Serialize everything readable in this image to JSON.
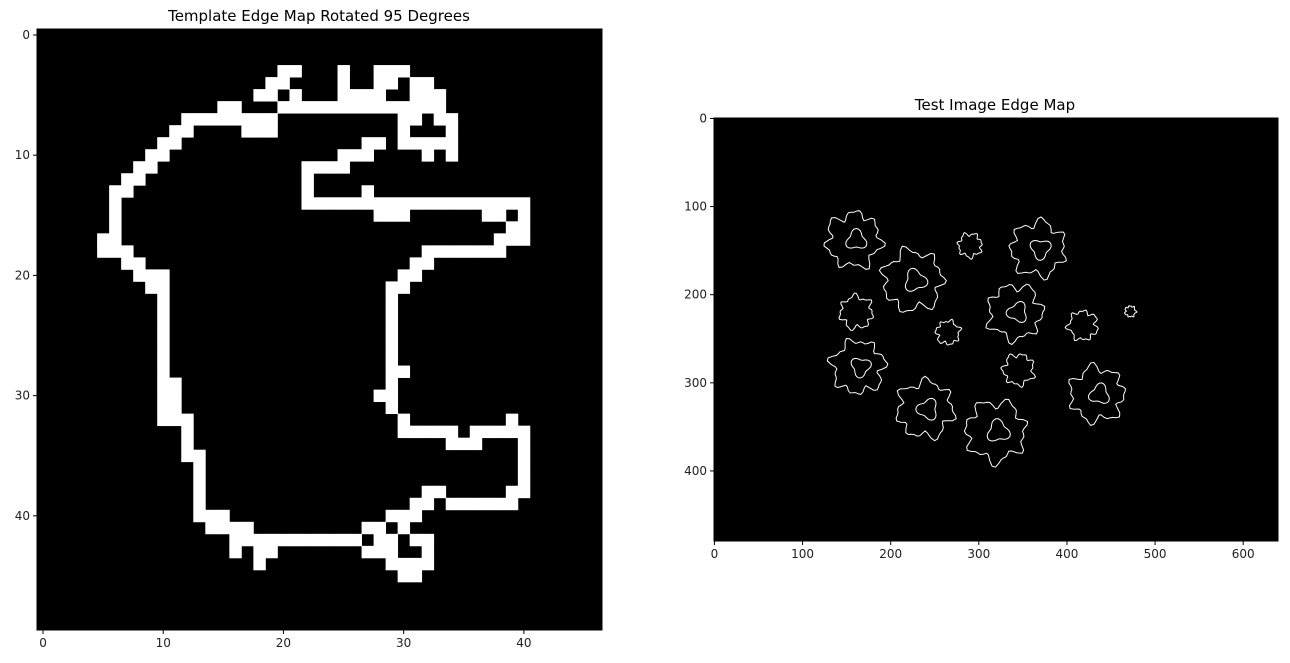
{
  "chart_data": [
    {
      "type": "heatmap",
      "title": "Template Edge Map Rotated 95 Degrees",
      "xlim": [
        -0.5,
        46.5
      ],
      "ylim": [
        49.5,
        -0.5
      ],
      "x_ticks": [
        0,
        10,
        20,
        30,
        40
      ],
      "y_ticks": [
        0,
        10,
        20,
        30,
        40
      ],
      "colormap": "gray",
      "background_color": "#000000",
      "edge_color": "#ffffff",
      "edge_pixels": [
        [
          20,
          3
        ],
        [
          21,
          3
        ],
        [
          25,
          3
        ],
        [
          28,
          3
        ],
        [
          29,
          3
        ],
        [
          30,
          3
        ],
        [
          19,
          4
        ],
        [
          20,
          4
        ],
        [
          25,
          4
        ],
        [
          28,
          4
        ],
        [
          29,
          4
        ],
        [
          31,
          4
        ],
        [
          32,
          4
        ],
        [
          18,
          5
        ],
        [
          19,
          5
        ],
        [
          21,
          5
        ],
        [
          25,
          5
        ],
        [
          26,
          5
        ],
        [
          27,
          5
        ],
        [
          28,
          5
        ],
        [
          31,
          5
        ],
        [
          32,
          5
        ],
        [
          33,
          5
        ],
        [
          15,
          6
        ],
        [
          16,
          6
        ],
        [
          20,
          6
        ],
        [
          21,
          6
        ],
        [
          22,
          6
        ],
        [
          23,
          6
        ],
        [
          24,
          6
        ],
        [
          25,
          6
        ],
        [
          26,
          6
        ],
        [
          27,
          6
        ],
        [
          28,
          6
        ],
        [
          29,
          6
        ],
        [
          30,
          6
        ],
        [
          31,
          6
        ],
        [
          32,
          6
        ],
        [
          33,
          6
        ],
        [
          12,
          7
        ],
        [
          13,
          7
        ],
        [
          14,
          7
        ],
        [
          15,
          7
        ],
        [
          16,
          7
        ],
        [
          17,
          7
        ],
        [
          18,
          7
        ],
        [
          19,
          7
        ],
        [
          30,
          7
        ],
        [
          31,
          7
        ],
        [
          33,
          7
        ],
        [
          34,
          7
        ],
        [
          11,
          8
        ],
        [
          12,
          8
        ],
        [
          17,
          8
        ],
        [
          18,
          8
        ],
        [
          19,
          8
        ],
        [
          30,
          8
        ],
        [
          34,
          8
        ],
        [
          10,
          9
        ],
        [
          11,
          9
        ],
        [
          27,
          9
        ],
        [
          28,
          9
        ],
        [
          30,
          9
        ],
        [
          31,
          9
        ],
        [
          32,
          9
        ],
        [
          33,
          9
        ],
        [
          34,
          9
        ],
        [
          9,
          10
        ],
        [
          10,
          10
        ],
        [
          25,
          10
        ],
        [
          26,
          10
        ],
        [
          27,
          10
        ],
        [
          32,
          10
        ],
        [
          34,
          10
        ],
        [
          8,
          11
        ],
        [
          9,
          11
        ],
        [
          22,
          11
        ],
        [
          23,
          11
        ],
        [
          24,
          11
        ],
        [
          25,
          11
        ],
        [
          7,
          12
        ],
        [
          8,
          12
        ],
        [
          22,
          12
        ],
        [
          6,
          13
        ],
        [
          7,
          13
        ],
        [
          22,
          13
        ],
        [
          27,
          13
        ],
        [
          6,
          14
        ],
        [
          22,
          14
        ],
        [
          23,
          14
        ],
        [
          24,
          14
        ],
        [
          25,
          14
        ],
        [
          26,
          14
        ],
        [
          27,
          14
        ],
        [
          28,
          14
        ],
        [
          29,
          14
        ],
        [
          30,
          14
        ],
        [
          31,
          14
        ],
        [
          32,
          14
        ],
        [
          33,
          14
        ],
        [
          34,
          14
        ],
        [
          35,
          14
        ],
        [
          36,
          14
        ],
        [
          37,
          14
        ],
        [
          38,
          14
        ],
        [
          39,
          14
        ],
        [
          40,
          14
        ],
        [
          6,
          15
        ],
        [
          28,
          15
        ],
        [
          29,
          15
        ],
        [
          30,
          15
        ],
        [
          37,
          15
        ],
        [
          38,
          15
        ],
        [
          40,
          15
        ],
        [
          6,
          16
        ],
        [
          39,
          16
        ],
        [
          40,
          16
        ],
        [
          5,
          17
        ],
        [
          6,
          17
        ],
        [
          38,
          17
        ],
        [
          39,
          17
        ],
        [
          40,
          17
        ],
        [
          5,
          18
        ],
        [
          6,
          18
        ],
        [
          7,
          18
        ],
        [
          32,
          18
        ],
        [
          33,
          18
        ],
        [
          34,
          18
        ],
        [
          35,
          18
        ],
        [
          36,
          18
        ],
        [
          37,
          18
        ],
        [
          38,
          18
        ],
        [
          7,
          19
        ],
        [
          8,
          19
        ],
        [
          31,
          19
        ],
        [
          32,
          19
        ],
        [
          8,
          20
        ],
        [
          9,
          20
        ],
        [
          10,
          20
        ],
        [
          30,
          20
        ],
        [
          31,
          20
        ],
        [
          9,
          21
        ],
        [
          10,
          21
        ],
        [
          29,
          21
        ],
        [
          30,
          21
        ],
        [
          10,
          22
        ],
        [
          29,
          22
        ],
        [
          10,
          23
        ],
        [
          29,
          23
        ],
        [
          10,
          24
        ],
        [
          29,
          24
        ],
        [
          10,
          25
        ],
        [
          29,
          25
        ],
        [
          10,
          26
        ],
        [
          29,
          26
        ],
        [
          10,
          27
        ],
        [
          29,
          27
        ],
        [
          10,
          28
        ],
        [
          29,
          28
        ],
        [
          30,
          28
        ],
        [
          10,
          29
        ],
        [
          11,
          29
        ],
        [
          29,
          29
        ],
        [
          10,
          30
        ],
        [
          11,
          30
        ],
        [
          28,
          30
        ],
        [
          29,
          30
        ],
        [
          10,
          31
        ],
        [
          11,
          31
        ],
        [
          29,
          31
        ],
        [
          10,
          32
        ],
        [
          11,
          32
        ],
        [
          12,
          32
        ],
        [
          30,
          32
        ],
        [
          39,
          32
        ],
        [
          12,
          33
        ],
        [
          30,
          33
        ],
        [
          31,
          33
        ],
        [
          32,
          33
        ],
        [
          33,
          33
        ],
        [
          34,
          33
        ],
        [
          36,
          33
        ],
        [
          37,
          33
        ],
        [
          38,
          33
        ],
        [
          39,
          33
        ],
        [
          40,
          33
        ],
        [
          12,
          34
        ],
        [
          34,
          34
        ],
        [
          35,
          34
        ],
        [
          36,
          34
        ],
        [
          40,
          34
        ],
        [
          12,
          35
        ],
        [
          13,
          35
        ],
        [
          40,
          35
        ],
        [
          13,
          36
        ],
        [
          40,
          36
        ],
        [
          13,
          37
        ],
        [
          40,
          37
        ],
        [
          13,
          38
        ],
        [
          32,
          38
        ],
        [
          33,
          38
        ],
        [
          39,
          38
        ],
        [
          40,
          38
        ],
        [
          13,
          39
        ],
        [
          31,
          39
        ],
        [
          32,
          39
        ],
        [
          34,
          39
        ],
        [
          35,
          39
        ],
        [
          36,
          39
        ],
        [
          37,
          39
        ],
        [
          38,
          39
        ],
        [
          39,
          39
        ],
        [
          13,
          40
        ],
        [
          14,
          40
        ],
        [
          15,
          40
        ],
        [
          29,
          40
        ],
        [
          30,
          40
        ],
        [
          31,
          40
        ],
        [
          14,
          41
        ],
        [
          15,
          41
        ],
        [
          16,
          41
        ],
        [
          17,
          41
        ],
        [
          27,
          41
        ],
        [
          28,
          41
        ],
        [
          30,
          41
        ],
        [
          16,
          42
        ],
        [
          17,
          42
        ],
        [
          18,
          42
        ],
        [
          19,
          42
        ],
        [
          20,
          42
        ],
        [
          21,
          42
        ],
        [
          22,
          42
        ],
        [
          23,
          42
        ],
        [
          24,
          42
        ],
        [
          25,
          42
        ],
        [
          26,
          42
        ],
        [
          28,
          42
        ],
        [
          29,
          42
        ],
        [
          31,
          42
        ],
        [
          32,
          42
        ],
        [
          16,
          43
        ],
        [
          18,
          43
        ],
        [
          19,
          43
        ],
        [
          27,
          43
        ],
        [
          28,
          43
        ],
        [
          29,
          43
        ],
        [
          32,
          43
        ],
        [
          18,
          44
        ],
        [
          29,
          44
        ],
        [
          30,
          44
        ],
        [
          31,
          44
        ],
        [
          32,
          44
        ],
        [
          30,
          45
        ],
        [
          31,
          45
        ]
      ]
    },
    {
      "type": "heatmap",
      "title": "Test Image Edge Map",
      "xlim": [
        -0.5,
        639.5
      ],
      "ylim": [
        479.5,
        -0.5
      ],
      "x_ticks": [
        0,
        100,
        200,
        300,
        400,
        500,
        600
      ],
      "y_ticks": [
        0,
        100,
        200,
        300,
        400
      ],
      "colormap": "gray",
      "background_color": "#000000",
      "edge_color": "#ffffff",
      "contours": [
        {
          "cx": 158,
          "cy": 138,
          "r": 30
        },
        {
          "cx": 225,
          "cy": 184,
          "r": 33
        },
        {
          "cx": 290,
          "cy": 144,
          "r": 13
        },
        {
          "cx": 367,
          "cy": 148,
          "r": 30
        },
        {
          "cx": 161,
          "cy": 220,
          "r": 18
        },
        {
          "cx": 341,
          "cy": 220,
          "r": 30
        },
        {
          "cx": 265,
          "cy": 243,
          "r": 13
        },
        {
          "cx": 418,
          "cy": 235,
          "r": 16
        },
        {
          "cx": 472,
          "cy": 219,
          "r": 6
        },
        {
          "cx": 163,
          "cy": 282,
          "r": 29
        },
        {
          "cx": 345,
          "cy": 285,
          "r": 17
        },
        {
          "cx": 239,
          "cy": 330,
          "r": 31
        },
        {
          "cx": 434,
          "cy": 313,
          "r": 30
        },
        {
          "cx": 319,
          "cy": 355,
          "r": 33
        }
      ]
    }
  ]
}
